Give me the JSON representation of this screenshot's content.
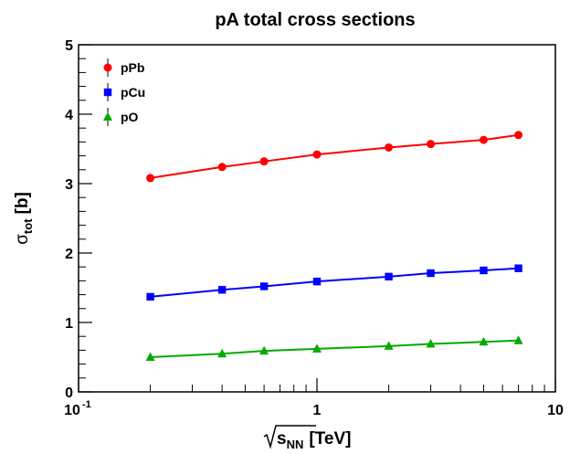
{
  "chart_data": {
    "type": "line",
    "title": "pA total cross sections",
    "xlabel": {
      "sqrt": "s",
      "sub": "NN",
      "unit": "[TeV]"
    },
    "ylabel": {
      "sym": "σ",
      "sub": "tot",
      "unit": "[b]"
    },
    "x_scale": "log",
    "xlim": [
      0.1,
      10
    ],
    "ylim": [
      0,
      5
    ],
    "x_ticks": [
      {
        "value": 0.1,
        "base": "10",
        "exp": "-1"
      },
      {
        "value": 1,
        "base": "1",
        "exp": ""
      },
      {
        "value": 10,
        "base": "10",
        "exp": ""
      }
    ],
    "y_ticks": [
      0,
      1,
      2,
      3,
      4,
      5
    ],
    "grid": false,
    "legend_position": "top-left",
    "x": [
      0.2,
      0.4,
      0.6,
      1,
      2,
      3,
      5,
      7
    ],
    "series": [
      {
        "name": "pPb",
        "color": "#ff0000",
        "marker": "circle",
        "values": [
          3.08,
          3.24,
          3.32,
          3.42,
          3.52,
          3.57,
          3.63,
          3.7
        ]
      },
      {
        "name": "pCu",
        "color": "#0000ff",
        "marker": "square",
        "values": [
          1.37,
          1.47,
          1.52,
          1.59,
          1.66,
          1.71,
          1.75,
          1.78
        ]
      },
      {
        "name": "pO",
        "color": "#00aa00",
        "marker": "triangle",
        "values": [
          0.5,
          0.55,
          0.59,
          0.62,
          0.66,
          0.69,
          0.72,
          0.74
        ]
      }
    ]
  }
}
